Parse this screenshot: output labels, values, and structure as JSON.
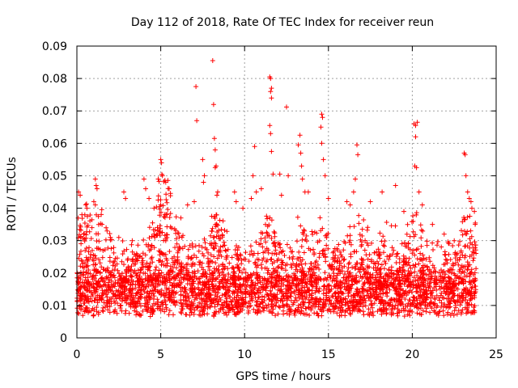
{
  "chart_data": {
    "type": "scatter",
    "title": "Day 112 of 2018, Rate Of TEC Index for receiver reun",
    "xlabel": "GPS time / hours",
    "ylabel": "ROTI / TECUs",
    "xlim": [
      0,
      25
    ],
    "ylim": [
      0,
      0.09
    ],
    "xticks": [
      0,
      5,
      10,
      15,
      20,
      25
    ],
    "yticks": [
      0,
      0.01,
      0.02,
      0.03,
      0.04,
      0.05,
      0.06,
      0.07,
      0.08,
      0.09
    ],
    "xtick_labels": [
      "0",
      "5",
      "10",
      "15",
      "20",
      "25"
    ],
    "ytick_labels": [
      "0",
      "0.01",
      "0.02",
      "0.03",
      "0.04",
      "0.05",
      "0.06",
      "0.07",
      "0.08",
      "0.09"
    ],
    "grid": true,
    "marker": "+",
    "color": "#ff0000",
    "x_data_range": [
      0,
      23.8
    ],
    "series": [
      {
        "name": "ROTI",
        "points": [
          [
            0.1,
            0.045
          ],
          [
            0.2,
            0.044
          ],
          [
            0.3,
            0.038
          ],
          [
            0.4,
            0.032
          ],
          [
            0.6,
            0.04
          ],
          [
            0.9,
            0.034
          ],
          [
            1.1,
            0.049
          ],
          [
            1.15,
            0.047
          ],
          [
            1.2,
            0.046
          ],
          [
            1.1,
            0.041
          ],
          [
            1.5,
            0.035
          ],
          [
            2.0,
            0.031
          ],
          [
            2.5,
            0.031
          ],
          [
            2.8,
            0.045
          ],
          [
            2.9,
            0.043
          ],
          [
            3.3,
            0.03
          ],
          [
            4.0,
            0.049
          ],
          [
            4.1,
            0.046
          ],
          [
            4.3,
            0.043
          ],
          [
            4.6,
            0.04
          ],
          [
            4.85,
            0.049
          ],
          [
            5.0,
            0.055
          ],
          [
            5.05,
            0.054
          ],
          [
            5.1,
            0.05
          ],
          [
            5.3,
            0.048
          ],
          [
            5.5,
            0.046
          ],
          [
            5.0,
            0.041
          ],
          [
            6.2,
            0.037
          ],
          [
            6.6,
            0.041
          ],
          [
            7.0,
            0.042
          ],
          [
            7.1,
            0.0775
          ],
          [
            7.15,
            0.067
          ],
          [
            7.5,
            0.055
          ],
          [
            7.55,
            0.048
          ],
          [
            7.6,
            0.05
          ],
          [
            8.1,
            0.0855
          ],
          [
            8.15,
            0.072
          ],
          [
            8.2,
            0.0615
          ],
          [
            8.25,
            0.058
          ],
          [
            8.3,
            0.053
          ],
          [
            8.25,
            0.0525
          ],
          [
            8.35,
            0.044
          ],
          [
            8.4,
            0.045
          ],
          [
            9.4,
            0.045
          ],
          [
            9.5,
            0.042
          ],
          [
            9.9,
            0.04
          ],
          [
            10.4,
            0.043
          ],
          [
            10.5,
            0.05
          ],
          [
            10.6,
            0.059
          ],
          [
            10.7,
            0.045
          ],
          [
            11.0,
            0.046
          ],
          [
            11.5,
            0.0805
          ],
          [
            11.55,
            0.08
          ],
          [
            11.6,
            0.077
          ],
          [
            11.55,
            0.076
          ],
          [
            11.6,
            0.074
          ],
          [
            11.5,
            0.0655
          ],
          [
            11.55,
            0.063
          ],
          [
            11.6,
            0.0575
          ],
          [
            11.7,
            0.0505
          ],
          [
            12.1,
            0.0505
          ],
          [
            12.2,
            0.044
          ],
          [
            12.5,
            0.0712
          ],
          [
            12.6,
            0.05
          ],
          [
            13.2,
            0.0595
          ],
          [
            13.3,
            0.0625
          ],
          [
            13.35,
            0.057
          ],
          [
            13.4,
            0.053
          ],
          [
            13.45,
            0.049
          ],
          [
            13.6,
            0.045
          ],
          [
            13.8,
            0.045
          ],
          [
            14.6,
            0.069
          ],
          [
            14.65,
            0.068
          ],
          [
            14.55,
            0.065
          ],
          [
            14.6,
            0.06
          ],
          [
            14.7,
            0.055
          ],
          [
            14.8,
            0.05
          ],
          [
            15.0,
            0.043
          ],
          [
            16.1,
            0.042
          ],
          [
            16.3,
            0.041
          ],
          [
            16.5,
            0.045
          ],
          [
            16.6,
            0.049
          ],
          [
            16.7,
            0.0595
          ],
          [
            16.75,
            0.0565
          ],
          [
            17.5,
            0.042
          ],
          [
            18.2,
            0.045
          ],
          [
            19.0,
            0.047
          ],
          [
            19.5,
            0.039
          ],
          [
            20.1,
            0.066
          ],
          [
            20.2,
            0.0655
          ],
          [
            20.3,
            0.0665
          ],
          [
            20.2,
            0.062
          ],
          [
            20.15,
            0.053
          ],
          [
            20.25,
            0.0525
          ],
          [
            20.4,
            0.045
          ],
          [
            20.6,
            0.041
          ],
          [
            21.2,
            0.035
          ],
          [
            21.9,
            0.032
          ],
          [
            22.5,
            0.03
          ],
          [
            23.1,
            0.057
          ],
          [
            23.15,
            0.0565
          ],
          [
            23.2,
            0.05
          ],
          [
            23.3,
            0.045
          ],
          [
            23.4,
            0.043
          ],
          [
            23.5,
            0.042
          ],
          [
            23.55,
            0.04
          ],
          [
            23.7,
            0.039
          ],
          [
            23.75,
            0.035
          ]
        ],
        "dense_band": {
          "description": "baseline cloud of points",
          "x_range": [
            0,
            23.8
          ],
          "y_low": 0.004,
          "y_high": 0.03,
          "y_typical": 0.012
        }
      }
    ]
  }
}
